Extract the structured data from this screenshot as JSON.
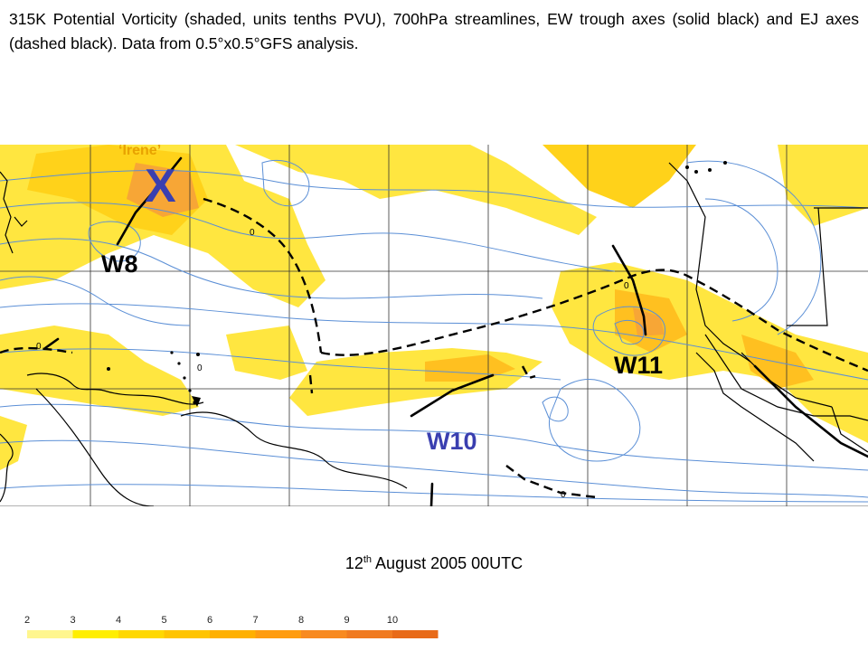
{
  "caption": "315K Potential Vorticity (shaded, units tenths PVU), 700hPa streamlines, EW trough axes (solid black) and EJ axes (dashed black). Data from 0.5°x0.5°GFS analysis.",
  "storm": {
    "name": "‘Irene’",
    "mark": "X"
  },
  "waves": {
    "w8": "W8",
    "w10": "W10",
    "w11": "W11"
  },
  "contour_labels": [
    "0",
    "0",
    "0",
    "0",
    "0",
    "0"
  ],
  "date": {
    "day": "12",
    "suffix": "th",
    "rest": " August 2005 00UTC"
  },
  "scale": {
    "ticks": [
      "2",
      "3",
      "4",
      "5",
      "6",
      "7",
      "8",
      "9",
      "10"
    ],
    "colors": [
      "#fff68f",
      "#ffee00",
      "#ffd800",
      "#ffc400",
      "#ffb000",
      "#ff9c10",
      "#f88a20",
      "#f07a20",
      "#e86a18"
    ]
  },
  "palette": {
    "pv_light": "#ffee22",
    "pv_mid": "#ffcc00",
    "pv_high": "#f7a020",
    "streamline": "#5b8fd6",
    "land": "#000000",
    "grid": "#333333"
  }
}
